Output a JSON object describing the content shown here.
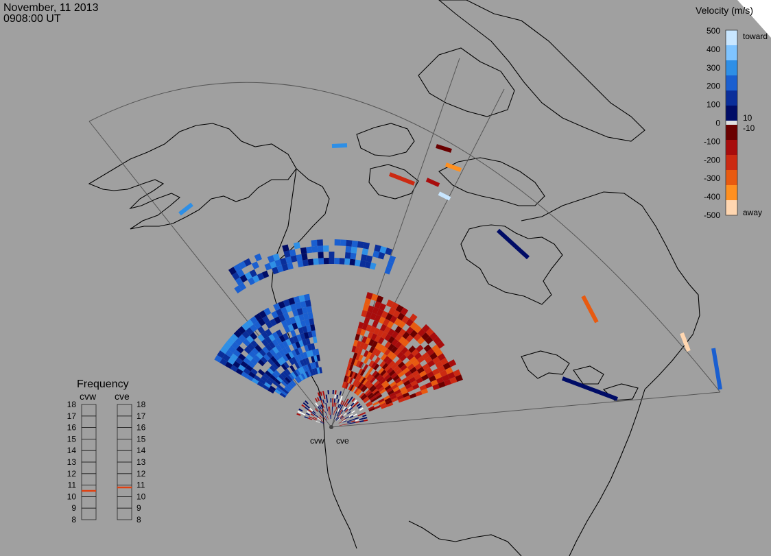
{
  "header": {
    "date": "November, 11 2013",
    "time": "0908:00 UT"
  },
  "colorbar": {
    "title": "Velocity (m/s)",
    "toward_label": "toward",
    "away_label": "away",
    "tick_labels": [
      "500",
      "400",
      "300",
      "200",
      "100",
      "0",
      "-100",
      "-200",
      "-300",
      "-400",
      "-500"
    ],
    "near_zero_labels": [
      "10",
      "-10"
    ],
    "positive_colors": [
      "#c8e6ff",
      "#7fc4ff",
      "#2e8fe6",
      "#1a5fd0",
      "#0a2e9a",
      "#000c66"
    ],
    "negative_colors": [
      "#6a0000",
      "#a80c0c",
      "#cc2a12",
      "#e85a10",
      "#ff9020",
      "#ffd6b0"
    ],
    "zero_band_color": "#e0e0e0"
  },
  "radars": {
    "labels": [
      "cvw",
      "cve"
    ]
  },
  "frequency_panel": {
    "title": "Frequency",
    "columns": [
      "cvw",
      "cve"
    ],
    "levels": [
      "18",
      "17",
      "16",
      "15",
      "14",
      "13",
      "12",
      "11",
      "10",
      "9",
      "8"
    ],
    "cvw_value": 10.5,
    "cve_value": 10.8,
    "marker_color": "#e04010"
  }
}
